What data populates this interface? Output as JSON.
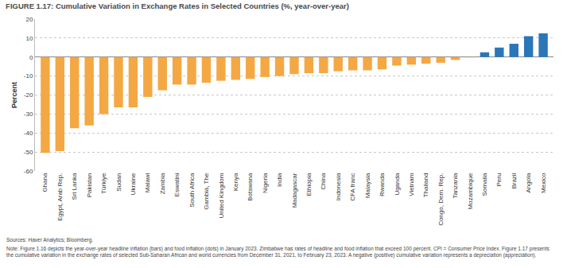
{
  "chart_data": {
    "type": "bar",
    "title": "FIGURE 1.17: Cumulative Variation in Exchange Rates in Selected Countries (%, year-over-year)",
    "y_label": "Percent",
    "categories": [
      "Ghana",
      "Egypt, Arab Rep.",
      "Sri Lanka",
      "Pakistan",
      "Türkiye",
      "Sudan",
      "Ukraine",
      "Malawi",
      "Zambia",
      "Eswatini",
      "South Africa",
      "Gambia, The",
      "United Kingdom",
      "Kenya",
      "Botswana",
      "Nigeria",
      "India",
      "Madagascar",
      "Ethiopia",
      "China",
      "Indonesia",
      "CFA franc",
      "Malaysia",
      "Rwanda",
      "Uganda",
      "Vietnam",
      "Thailand",
      "Congo, Dem. Rep.",
      "Tanzania",
      "Mozambique",
      "Somalia",
      "Peru",
      "Brazil",
      "Angola",
      "Mexico"
    ],
    "values": [
      -50.5,
      -49.5,
      -37.5,
      -36,
      -30,
      -26.5,
      -26.5,
      -21,
      -17.5,
      -14.5,
      -14.5,
      -13.5,
      -12.5,
      -12,
      -11.5,
      -10.5,
      -10,
      -9,
      -8.5,
      -8.5,
      -7.5,
      -7,
      -7,
      -6.5,
      -4.5,
      -4,
      -3.5,
      -3,
      -1.5,
      -0.2,
      2.5,
      5,
      7,
      11,
      12.5
    ],
    "colors": [
      "#f4a844",
      "#f4a844",
      "#f4a844",
      "#f4a844",
      "#f4a844",
      "#f4a844",
      "#f4a844",
      "#f4a844",
      "#f4a844",
      "#f4a844",
      "#f4a844",
      "#f4a844",
      "#f4a844",
      "#f4a844",
      "#f4a844",
      "#f4a844",
      "#f4a844",
      "#f4a844",
      "#f4a844",
      "#f4a844",
      "#f4a844",
      "#f4a844",
      "#f4a844",
      "#f4a844",
      "#f4a844",
      "#f4a844",
      "#f4a844",
      "#f4a844",
      "#f4a844",
      "#f4a844",
      "#2a77b8",
      "#2a77b8",
      "#2a77b8",
      "#2a77b8",
      "#2a77b8"
    ],
    "ylim": [
      -60,
      20
    ],
    "yticks": [
      -60,
      -50,
      -40,
      -30,
      -20,
      -10,
      0,
      10,
      20
    ],
    "grid": true,
    "annotations": [
      "Sources: Haver Analytics; Bloomberg.",
      "Note: Figure 1.16 depicts the year-over-year headline inflation (bars) and food inflation (dots) in January 2023. Zimbabwe has rates of headline and food inflation that exceed 100 percent. CPI = Consumer Price Index. Figure 1.17 presents the cumulative variation in the exchange rates of selected Sub-Saharan African and world currencies from December 31, 2021, to February 23, 2023. A negative (positive) cumulative variation represents a depreciation (appreciation)."
    ]
  }
}
